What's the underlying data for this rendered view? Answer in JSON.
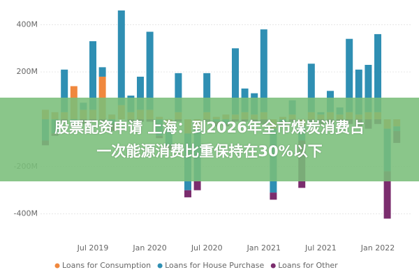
{
  "chart_data": {
    "type": "bar",
    "stacked": true,
    "categories": [
      null,
      null,
      null,
      null,
      null,
      "Jul 2019",
      null,
      null,
      null,
      null,
      null,
      "Jan 2020",
      null,
      null,
      null,
      null,
      null,
      "Jul 2020",
      null,
      null,
      null,
      null,
      null,
      "Jan 2021",
      null,
      null,
      null,
      null,
      null,
      "Jul 2021",
      null,
      null,
      null,
      null,
      null,
      "Jan 2022",
      null,
      null
    ],
    "series": [
      {
        "name": "Loans for Consumption",
        "color": "#f0883e",
        "values": [
          40,
          30,
          30,
          140,
          40,
          40,
          180,
          20,
          60,
          30,
          40,
          40,
          10,
          -30,
          30,
          -60,
          -40,
          30,
          10,
          20,
          20,
          30,
          20,
          30,
          -40,
          10,
          20,
          -30,
          30,
          20,
          30,
          20,
          30,
          20,
          30,
          30,
          -40,
          -30
        ]
      },
      {
        "name": "Loans for House Purchase",
        "color": "#2f8fb3",
        "values": [
          -90,
          -60,
          180,
          -20,
          30,
          290,
          40,
          -20,
          400,
          70,
          140,
          330,
          -70,
          -80,
          165,
          -240,
          -220,
          165,
          -10,
          -20,
          280,
          100,
          90,
          350,
          -270,
          -10,
          60,
          -60,
          205,
          10,
          90,
          30,
          310,
          190,
          200,
          330,
          -180,
          -20
        ]
      },
      {
        "name": "Loans for Other",
        "color": "#7b2d6e",
        "values": [
          -20,
          -10,
          -10,
          -10,
          -20,
          -10,
          -10,
          -30,
          0,
          -10,
          -10,
          -10,
          -10,
          -20,
          -10,
          -30,
          -40,
          -10,
          -20,
          -10,
          -10,
          -10,
          -10,
          -20,
          -30,
          -20,
          -10,
          -200,
          -20,
          -20,
          -20,
          -10,
          -20,
          -30,
          -40,
          -20,
          -200,
          -50
        ]
      }
    ],
    "ylim": [
      -460,
      460
    ],
    "yticks": [
      {
        "value": 400,
        "label": "400M"
      },
      {
        "value": 200,
        "label": "200M"
      },
      {
        "value": -200,
        "label": "-200M"
      },
      {
        "value": -400,
        "label": "-400M"
      }
    ],
    "grid": true,
    "legend": "bottom"
  },
  "banner": {
    "lines": [
      "股票配资申请 上海：到2026年全市煤炭消费占",
      "一次能源消费比重保持在30%以下"
    ]
  }
}
